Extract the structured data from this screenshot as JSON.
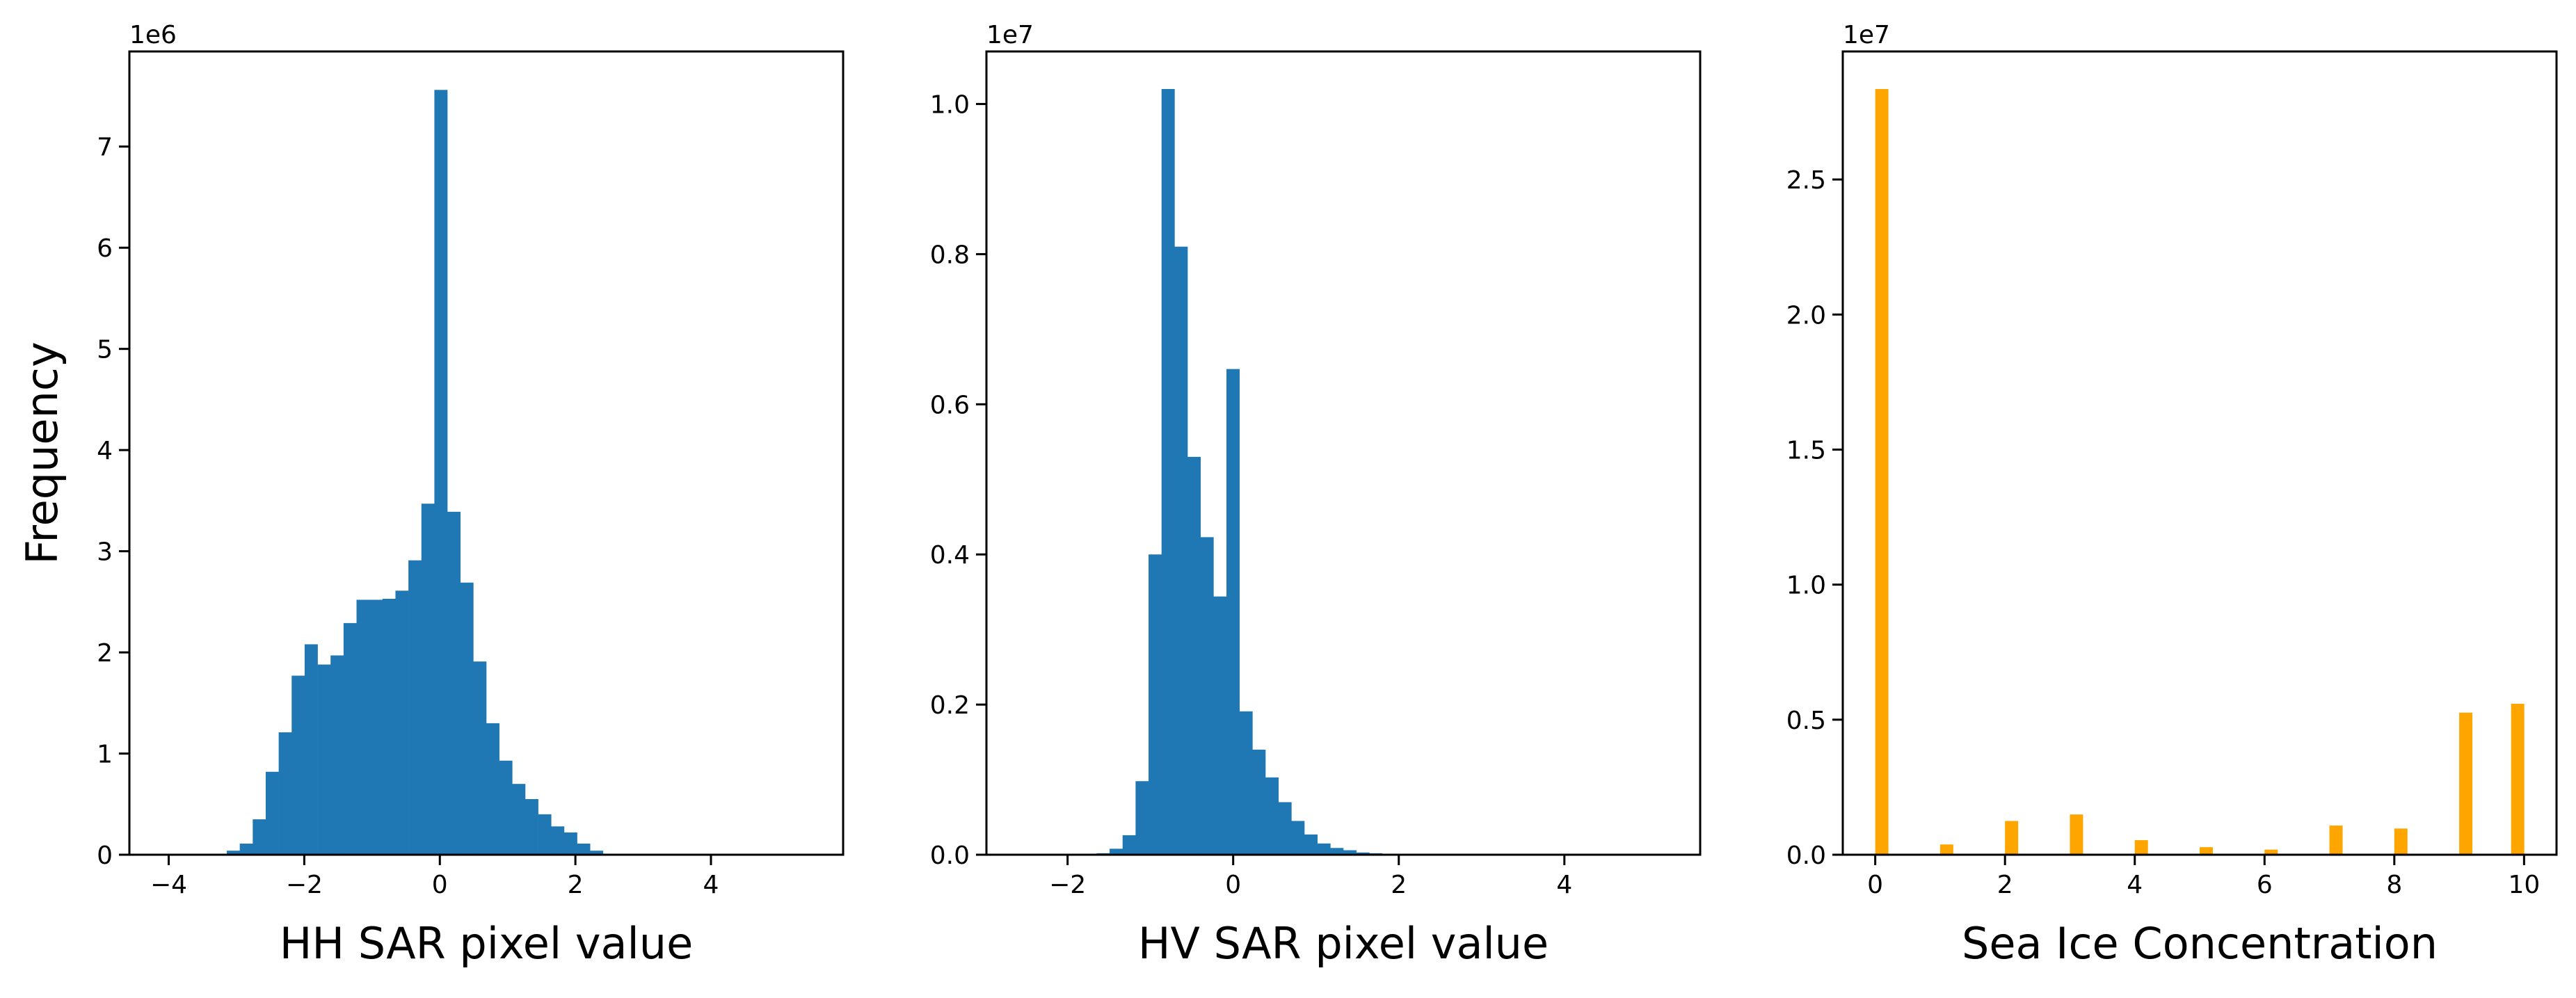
{
  "chart_data": [
    {
      "type": "bar",
      "subtype": "histogram",
      "xlabel": "HH SAR pixel value",
      "ylabel": "Frequency",
      "y_multiplier_label": "1e6",
      "color": "#1f77b4",
      "xlim": [
        -4.58,
        5.95
      ],
      "ylim": [
        0,
        7.94
      ],
      "bin_range": [
        -4.1,
        5.47
      ],
      "values": [
        0,
        0,
        0,
        0,
        0,
        0.04,
        0.11,
        0.35,
        0.82,
        1.21,
        1.77,
        2.08,
        1.88,
        1.97,
        2.29,
        2.52,
        2.52,
        2.53,
        2.61,
        2.91,
        3.47,
        7.56,
        3.39,
        2.69,
        1.91,
        1.3,
        0.93,
        0.7,
        0.55,
        0.4,
        0.28,
        0.22,
        0.11,
        0.04,
        0,
        0,
        0,
        0,
        0,
        0,
        0,
        0,
        0,
        0,
        0,
        0,
        0,
        0,
        0,
        0
      ],
      "xticks": [
        -4,
        -2,
        0,
        2,
        4
      ],
      "xtick_labels": [
        "−4",
        "−2",
        "0",
        "2",
        "4"
      ],
      "yticks": [
        0,
        1,
        2,
        3,
        4,
        5,
        6,
        7
      ],
      "ytick_labels": [
        "0",
        "1",
        "2",
        "3",
        "4",
        "5",
        "6",
        "7"
      ]
    },
    {
      "type": "bar",
      "subtype": "histogram",
      "xlabel": "HV SAR pixel value",
      "ylabel": "",
      "y_multiplier_label": "1e7",
      "color": "#1f77b4",
      "xlim": [
        -2.98,
        5.64
      ],
      "ylim": [
        0,
        1.07
      ],
      "bin_range": [
        -2.59,
        5.25
      ],
      "values": [
        0,
        0,
        0,
        0,
        0,
        0.001,
        0.002,
        0.008,
        0.026,
        0.098,
        0.4,
        1.02,
        0.81,
        0.53,
        0.423,
        0.344,
        0.647,
        0.191,
        0.14,
        0.103,
        0.07,
        0.045,
        0.027,
        0.015,
        0.009,
        0.006,
        0.003,
        0.002,
        0.001,
        0,
        0,
        0,
        0,
        0,
        0,
        0,
        0,
        0,
        0,
        0,
        0,
        0,
        0,
        0,
        0,
        0,
        0,
        0,
        0,
        0
      ],
      "xticks": [
        -2,
        0,
        2,
        4
      ],
      "xtick_labels": [
        "−2",
        "0",
        "2",
        "4"
      ],
      "yticks": [
        0,
        0.2,
        0.4,
        0.6,
        0.8,
        1.0
      ],
      "ytick_labels": [
        "0.0",
        "0.2",
        "0.4",
        "0.6",
        "0.8",
        "1.0"
      ]
    },
    {
      "type": "bar",
      "subtype": "histogram",
      "xlabel": "Sea Ice Concentration",
      "ylabel": "",
      "y_multiplier_label": "1e7",
      "color": "#ffa500",
      "xlim": [
        -0.5,
        10.5
      ],
      "ylim": [
        0,
        2.974
      ],
      "bin_range": [
        0,
        10
      ],
      "values": [
        2.835,
        0,
        0,
        0,
        0,
        0.038,
        0,
        0,
        0,
        0,
        0.125,
        0,
        0,
        0,
        0,
        0.149,
        0,
        0,
        0,
        0,
        0.054,
        0,
        0,
        0,
        0,
        0.028,
        0,
        0,
        0,
        0,
        0.019,
        0,
        0,
        0,
        0,
        0.108,
        0,
        0,
        0,
        0,
        0.097,
        0,
        0,
        0,
        0,
        0.526,
        0,
        0,
        0,
        0.559
      ],
      "xticks": [
        0,
        2,
        4,
        6,
        8,
        10
      ],
      "xtick_labels": [
        "0",
        "2",
        "4",
        "6",
        "8",
        "10"
      ],
      "yticks": [
        0,
        0.5,
        1.0,
        1.5,
        2.0,
        2.5
      ],
      "ytick_labels": [
        "0.0",
        "0.5",
        "1.0",
        "1.5",
        "2.0",
        "2.5"
      ]
    }
  ]
}
